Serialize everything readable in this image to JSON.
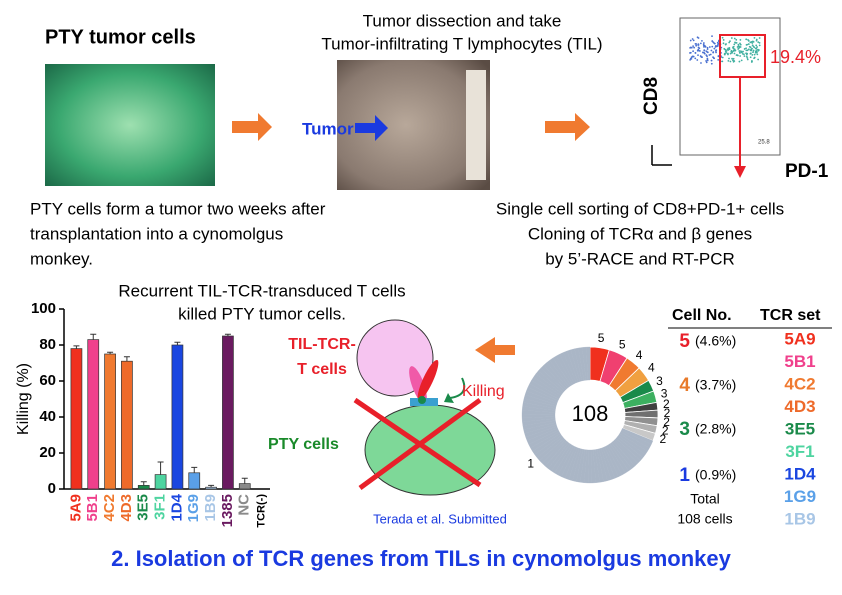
{
  "title": "2. Isolation of TCR genes from TILs in cynomolgus monkey",
  "panel1": {
    "heading": "PTY tumor cells",
    "caption": [
      "PTY cells form a tumor two weeks after",
      "transplantation into a cynomolgus",
      "monkey."
    ]
  },
  "panel2": {
    "heading": [
      "Tumor dissection and take",
      "Tumor-infiltrating T lymphocytes (TIL)"
    ],
    "tumor_label": "Tumor"
  },
  "panel3": {
    "y_label": "CD8",
    "x_label": "PD-1",
    "gate": {
      "value": 19.4,
      "label": "19.4%"
    },
    "quadrant_value": 25.8,
    "caption": [
      "Single cell sorting of CD8+PD-1+ cells",
      "Cloning of TCRα and β genes",
      "by 5’-RACE and  RT-PCR"
    ]
  },
  "chart_data": [
    {
      "type": "bar",
      "title": [
        "Recurrent TIL-TCR-transduced T cells",
        "killed PTY tumor cells."
      ],
      "ylabel": "Killing (%)",
      "categories": [
        "5A9",
        "5B1",
        "4C2",
        "4D3",
        "3E5",
        "3F1",
        "1D4",
        "1G9",
        "1B9",
        "1385",
        "NC",
        "TCR(-)"
      ],
      "values": [
        78,
        83,
        75,
        71,
        2,
        8,
        80,
        9,
        1,
        85,
        3,
        0
      ],
      "errors": [
        1.5,
        3,
        1,
        2.5,
        2,
        7,
        1.5,
        3,
        1,
        1,
        3,
        0
      ],
      "colors": [
        "#f0301e",
        "#f0408c",
        "#f07a30",
        "#ee6a2a",
        "#1a8a4a",
        "#4ed4a0",
        "#1a46e0",
        "#5aa0e8",
        "#a8c6e6",
        "#6a1a60",
        "#8a8a8a",
        "#ffffff"
      ],
      "ylim": [
        0,
        100
      ],
      "yticks": [
        0,
        20,
        40,
        60,
        80,
        100
      ]
    },
    {
      "type": "pie",
      "center_label": 108,
      "values": [
        5,
        5,
        4,
        4,
        3,
        3,
        2,
        2,
        2,
        2,
        2,
        1,
        1,
        1,
        1,
        1,
        1,
        1,
        1,
        1,
        1,
        1,
        1,
        1,
        1,
        1,
        1,
        1,
        1,
        1,
        1,
        1,
        1,
        1,
        1,
        1,
        1,
        1,
        1,
        1,
        1,
        1,
        1,
        1,
        1,
        1,
        1,
        1,
        1,
        1,
        1,
        1,
        1,
        1,
        1,
        1,
        1,
        1,
        1,
        1,
        1,
        1,
        1,
        1,
        1,
        1,
        1,
        1,
        1,
        1,
        1,
        1,
        1,
        1,
        1,
        1,
        1,
        1,
        1,
        1,
        1,
        1,
        1,
        1,
        1,
        1
      ],
      "colors": [
        "#f0301e",
        "#f04070",
        "#f07a30",
        "#f0a040",
        "#1a8a4a",
        "#3cb060",
        "#404040",
        "#707070",
        "#909090",
        "#b0b0b0",
        "#c8c8c8"
      ],
      "other_color": "#aab6c6"
    }
  ],
  "diagram": {
    "tcell_label": [
      "TIL-TCR-",
      "T cells"
    ],
    "killing": "Killing",
    "target_label": "PTY cells",
    "citation": "Terada et al. Submitted"
  },
  "table": {
    "headers": [
      "Cell No.",
      "TCR set"
    ],
    "rows": [
      {
        "count": 5,
        "percent": "(4.6%)"
      },
      {
        "count": 4,
        "percent": "(3.7%)"
      },
      {
        "count": 3,
        "percent": "(2.8%)"
      },
      {
        "count": 1,
        "percent": "(0.9%)"
      }
    ],
    "total": [
      "Total",
      "108 cells"
    ],
    "tcr_set": [
      "5A9",
      "5B1",
      "4C2",
      "4D3",
      "3E5",
      "3F1",
      "1D4",
      "1G9",
      "1B9"
    ]
  }
}
